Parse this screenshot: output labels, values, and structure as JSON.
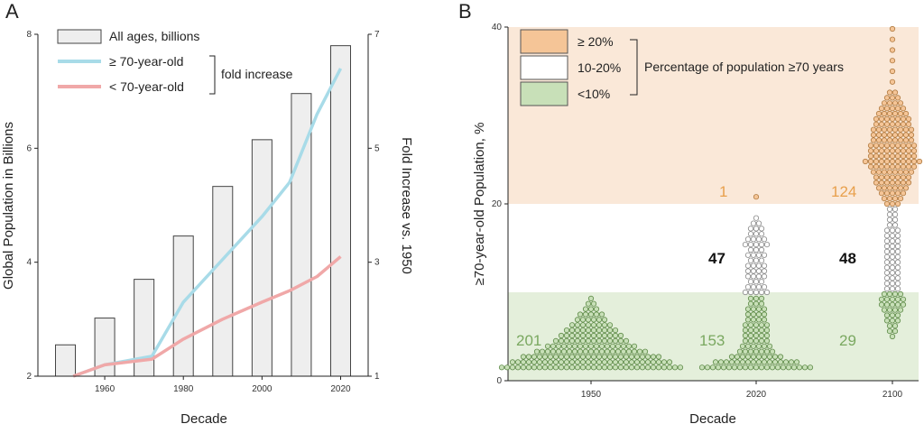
{
  "chart_data": [
    {
      "panel": "A",
      "type": "bar+line",
      "xlabel": "Decade",
      "ylabel": "Global Population in Billions",
      "y2label": "Fold Increase vs. 1950",
      "xticks": [
        "1960",
        "1980",
        "2000",
        "2020"
      ],
      "yticks": [
        "2",
        "4",
        "6",
        "8"
      ],
      "y2ticks": [
        "1",
        "3",
        "5",
        "7"
      ],
      "legend": {
        "bars": "All ages, billions",
        "old": "≥ 70-year-old",
        "young": "< 70-year-old",
        "bracket": "fold increase"
      },
      "bars": {
        "name": "All ages, billions",
        "categories": [
          "1950",
          "1960",
          "1970",
          "1980",
          "1990",
          "2000",
          "2010",
          "2020"
        ],
        "values": [
          2.55,
          3.02,
          3.7,
          4.46,
          5.33,
          6.15,
          6.96,
          7.8
        ]
      },
      "series": [
        {
          "name": "≥ 70-year-old",
          "x": [
            1952,
            1960,
            1972,
            1980,
            1990,
            2000,
            2007,
            2014,
            2020
          ],
          "y": [
            1.0,
            1.2,
            1.35,
            2.3,
            3.05,
            3.8,
            4.4,
            5.6,
            6.4
          ],
          "color": "#a8dbe8"
        },
        {
          "name": "< 70-year-old",
          "x": [
            1952,
            1960,
            1972,
            1980,
            1990,
            2000,
            2007,
            2014,
            2020
          ],
          "y": [
            1.0,
            1.2,
            1.3,
            1.65,
            2.0,
            2.3,
            2.5,
            2.75,
            3.1
          ],
          "color": "#f0a8a8"
        }
      ],
      "y_range": [
        1,
        7
      ],
      "x_range": [
        1943,
        2027
      ]
    },
    {
      "panel": "B",
      "type": "beeswarm",
      "xlabel": "Decade",
      "ylabel": "≥70-year-old Population, %",
      "categories": [
        "1950",
        "2020",
        "2100"
      ],
      "yticks": [
        "0",
        "20",
        "40"
      ],
      "ylim": [
        0,
        40
      ],
      "legend": [
        {
          "label": "≥ 20%",
          "color": "#f5c597"
        },
        {
          "label": "10-20%",
          "color": "#ffffff"
        },
        {
          "label": "<10%",
          "color": "#c8e0b8"
        }
      ],
      "legend_title": "Percentage of population ≥70 years",
      "counts": {
        "1950": {
          "high": "",
          "mid": "",
          "low": "201"
        },
        "2020": {
          "high": "1",
          "mid": "47",
          "low": "153"
        },
        "2100": {
          "high": "124",
          "mid": "48",
          "low": "29"
        }
      },
      "count_colors": {
        "high": "#e8a04c",
        "mid": "#111111",
        "low": "#7aa860"
      }
    }
  ],
  "panel_letters": {
    "a": "A",
    "b": "B"
  }
}
